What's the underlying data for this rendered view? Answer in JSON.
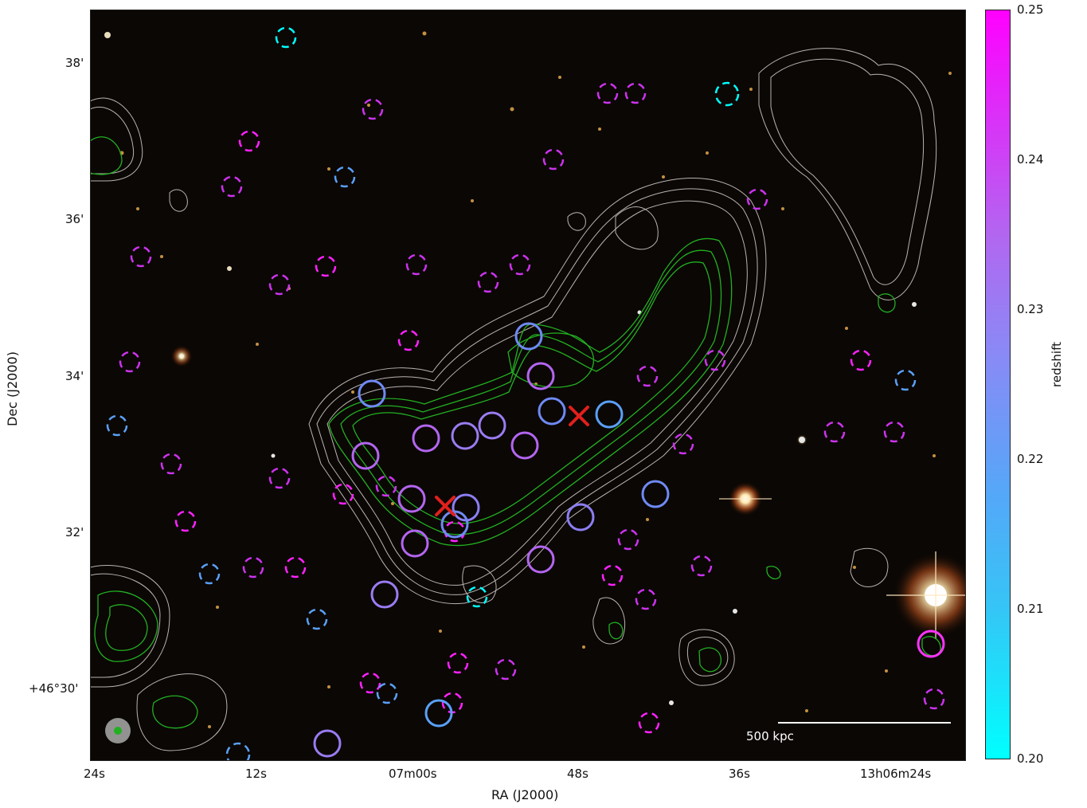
{
  "axes": {
    "xlabel": "RA (J2000)",
    "ylabel": "Dec (J2000)",
    "xticks": [
      "24s",
      "12s",
      "07m00s",
      "48s",
      "36s",
      "13h06m24s"
    ],
    "yticks": [
      "38'",
      "36'",
      "34'",
      "32'",
      "+46°30'"
    ]
  },
  "colorbar": {
    "label": "redshift",
    "ticks": [
      "0.25",
      "0.24",
      "0.23",
      "0.22",
      "0.21",
      "0.20"
    ],
    "range": [
      0.2,
      0.25
    ],
    "colors": {
      "top": "#ff00ff",
      "bottom": "#00ffff"
    }
  },
  "scalebar": {
    "label": "500 kpc"
  },
  "overlay_colors": {
    "background": "#0b0704",
    "radio_contour_white": "#d9d2d0",
    "radio_contour_green": "#22b022",
    "cluster_center_marker": "#e0201c"
  },
  "markers": {
    "cluster_centers": 2,
    "symbol": "x"
  }
}
